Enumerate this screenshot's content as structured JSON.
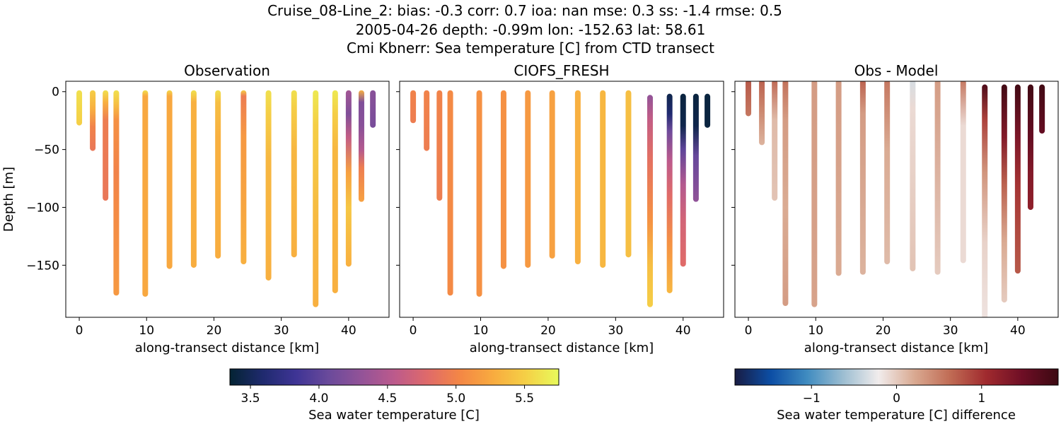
{
  "header": {
    "line1": "Cruise_08-Line_2: bias: -0.3  corr: 0.7  ioa: nan  mse: 0.3  ss: -1.4  rmse: 0.5",
    "line2": "2005-04-26 depth: -0.99m lon: -152.63 lat: 58.61",
    "line3": "Cmi Kbnerr: Sea temperature [C] from CTD transect"
  },
  "colorbars": {
    "temperature": {
      "label": "Sea water temperature [C]",
      "range": [
        3.35,
        5.75
      ],
      "ticks": [
        "3.5",
        "4.0",
        "4.5",
        "5.0",
        "5.5"
      ]
    },
    "difference": {
      "label": "Sea water temperature [C] difference",
      "range": [
        -1.9,
        1.9
      ],
      "ticks": [
        "−1",
        "0",
        "1"
      ]
    }
  },
  "chart_data": [
    {
      "type": "scatter",
      "title": "Observation",
      "xlabel": "along-transect distance [km]",
      "ylabel": "Depth [m]",
      "xlim": [
        -2,
        46
      ],
      "ylim": [
        -195,
        9
      ],
      "xticks": [
        "0",
        "10",
        "20",
        "30",
        "40"
      ],
      "yticks": [
        "0",
        "−50",
        "−100",
        "−150"
      ],
      "colorscale": "thermal",
      "casts": [
        {
          "x": 0.0,
          "bottom": -28,
          "top": 0,
          "stops": [
            {
              "d": 0,
              "v": 5.6
            },
            {
              "d": -28,
              "v": 5.5
            }
          ]
        },
        {
          "x": 2.0,
          "bottom": -50,
          "top": 0,
          "stops": [
            {
              "d": 0,
              "v": 5.5
            },
            {
              "d": -15,
              "v": 5.3
            },
            {
              "d": -30,
              "v": 5.0
            },
            {
              "d": -50,
              "v": 4.9
            }
          ]
        },
        {
          "x": 3.9,
          "bottom": -93,
          "top": 0,
          "stops": [
            {
              "d": 0,
              "v": 5.6
            },
            {
              "d": -10,
              "v": 5.3
            },
            {
              "d": -25,
              "v": 4.95
            },
            {
              "d": -93,
              "v": 4.9
            }
          ]
        },
        {
          "x": 5.5,
          "bottom": -175,
          "top": 0,
          "stops": [
            {
              "d": 0,
              "v": 5.6
            },
            {
              "d": -12,
              "v": 5.4
            },
            {
              "d": -25,
              "v": 5.1
            },
            {
              "d": -70,
              "v": 5.0
            },
            {
              "d": -100,
              "v": 5.05
            },
            {
              "d": -175,
              "v": 5.15
            }
          ]
        },
        {
          "x": 9.8,
          "bottom": -176,
          "top": 0,
          "stops": [
            {
              "d": 0,
              "v": 5.6
            },
            {
              "d": -5,
              "v": 5.25
            },
            {
              "d": -176,
              "v": 5.25
            }
          ]
        },
        {
          "x": 13.4,
          "bottom": -152,
          "top": 0,
          "stops": [
            {
              "d": 0,
              "v": 5.55
            },
            {
              "d": -5,
              "v": 5.25
            },
            {
              "d": -152,
              "v": 5.25
            }
          ]
        },
        {
          "x": 17.0,
          "bottom": -151,
          "top": 0,
          "stops": [
            {
              "d": 0,
              "v": 5.6
            },
            {
              "d": -10,
              "v": 5.3
            },
            {
              "d": -151,
              "v": 5.28
            }
          ]
        },
        {
          "x": 20.6,
          "bottom": -143,
          "top": 0,
          "stops": [
            {
              "d": 0,
              "v": 5.6
            },
            {
              "d": -10,
              "v": 5.4
            },
            {
              "d": -40,
              "v": 5.3
            },
            {
              "d": -143,
              "v": 5.28
            }
          ]
        },
        {
          "x": 24.4,
          "bottom": -148,
          "top": 0,
          "stops": [
            {
              "d": 0,
              "v": 5.5
            },
            {
              "d": -5,
              "v": 4.95
            },
            {
              "d": -40,
              "v": 5.15
            },
            {
              "d": -148,
              "v": 5.3
            }
          ]
        },
        {
          "x": 28.1,
          "bottom": -162,
          "top": 0,
          "stops": [
            {
              "d": 0,
              "v": 5.6
            },
            {
              "d": -20,
              "v": 5.5
            },
            {
              "d": -60,
              "v": 5.35
            },
            {
              "d": -162,
              "v": 5.3
            }
          ]
        },
        {
          "x": 31.9,
          "bottom": -142,
          "top": 0,
          "stops": [
            {
              "d": 0,
              "v": 5.6
            },
            {
              "d": -15,
              "v": 5.5
            },
            {
              "d": -50,
              "v": 5.35
            },
            {
              "d": -142,
              "v": 5.3
            }
          ]
        },
        {
          "x": 35.1,
          "bottom": -185,
          "top": 0,
          "stops": [
            {
              "d": 0,
              "v": 5.65
            },
            {
              "d": -30,
              "v": 5.5
            },
            {
              "d": -120,
              "v": 5.35
            },
            {
              "d": -185,
              "v": 5.3
            }
          ]
        },
        {
          "x": 38.0,
          "bottom": -173,
          "top": 0,
          "stops": [
            {
              "d": 0,
              "v": 5.65
            },
            {
              "d": -20,
              "v": 5.5
            },
            {
              "d": -50,
              "v": 5.35
            },
            {
              "d": -173,
              "v": 5.3
            }
          ]
        },
        {
          "x": 40.0,
          "bottom": -150,
          "top": 0,
          "stops": [
            {
              "d": 0,
              "v": 4.4
            },
            {
              "d": -20,
              "v": 4.2
            },
            {
              "d": -40,
              "v": 4.6
            },
            {
              "d": -70,
              "v": 5.2
            },
            {
              "d": -100,
              "v": 5.45
            },
            {
              "d": -150,
              "v": 5.3
            }
          ]
        },
        {
          "x": 41.9,
          "bottom": -94,
          "top": 0,
          "stops": [
            {
              "d": 0,
              "v": 5.3
            },
            {
              "d": -10,
              "v": 4.2
            },
            {
              "d": -30,
              "v": 4.25
            },
            {
              "d": -50,
              "v": 4.5
            },
            {
              "d": -65,
              "v": 4.95
            },
            {
              "d": -94,
              "v": 5.2
            }
          ]
        },
        {
          "x": 43.6,
          "bottom": -30,
          "top": 0,
          "stops": [
            {
              "d": 0,
              "v": 4.25
            },
            {
              "d": -30,
              "v": 4.15
            }
          ]
        }
      ]
    },
    {
      "type": "scatter",
      "title": "CIOFS_FRESH",
      "xlabel": "along-transect distance [km]",
      "xlim": [
        -2,
        46
      ],
      "ylim": [
        -195,
        9
      ],
      "xticks": [
        "0",
        "10",
        "20",
        "30",
        "40"
      ],
      "colorscale": "thermal",
      "casts": [
        {
          "x": 0.0,
          "bottom": -26,
          "top": 0,
          "stops": [
            {
              "d": 0,
              "v": 5.0
            },
            {
              "d": -26,
              "v": 4.95
            }
          ]
        },
        {
          "x": 2.0,
          "bottom": -50,
          "top": 0,
          "stops": [
            {
              "d": 0,
              "v": 5.0
            },
            {
              "d": -50,
              "v": 4.95
            }
          ]
        },
        {
          "x": 3.9,
          "bottom": -93,
          "top": 0,
          "stops": [
            {
              "d": 0,
              "v": 5.0
            },
            {
              "d": -93,
              "v": 4.95
            }
          ]
        },
        {
          "x": 5.5,
          "bottom": -175,
          "top": 0,
          "stops": [
            {
              "d": 0,
              "v": 5.05
            },
            {
              "d": -175,
              "v": 5.05
            }
          ]
        },
        {
          "x": 9.8,
          "bottom": -176,
          "top": 0,
          "stops": [
            {
              "d": 0,
              "v": 5.1
            },
            {
              "d": -176,
              "v": 5.1
            }
          ]
        },
        {
          "x": 13.4,
          "bottom": -152,
          "top": 0,
          "stops": [
            {
              "d": 0,
              "v": 5.1
            },
            {
              "d": -152,
              "v": 5.1
            }
          ]
        },
        {
          "x": 17.0,
          "bottom": -151,
          "top": 0,
          "stops": [
            {
              "d": 0,
              "v": 5.15
            },
            {
              "d": -151,
              "v": 5.15
            }
          ]
        },
        {
          "x": 20.6,
          "bottom": -143,
          "top": 0,
          "stops": [
            {
              "d": 0,
              "v": 5.2
            },
            {
              "d": -143,
              "v": 5.2
            }
          ]
        },
        {
          "x": 24.4,
          "bottom": -148,
          "top": 0,
          "stops": [
            {
              "d": 0,
              "v": 5.3
            },
            {
              "d": -148,
              "v": 5.3
            }
          ]
        },
        {
          "x": 28.1,
          "bottom": -151,
          "top": 0,
          "stops": [
            {
              "d": 0,
              "v": 5.35
            },
            {
              "d": -151,
              "v": 5.35
            }
          ]
        },
        {
          "x": 31.9,
          "bottom": -142,
          "top": 0,
          "stops": [
            {
              "d": 0,
              "v": 5.4
            },
            {
              "d": -142,
              "v": 5.4
            }
          ]
        },
        {
          "x": 35.1,
          "bottom": -185,
          "top": -4,
          "stops": [
            {
              "d": -4,
              "v": 4.3
            },
            {
              "d": -25,
              "v": 4.6
            },
            {
              "d": -60,
              "v": 4.85
            },
            {
              "d": -110,
              "v": 5.1
            },
            {
              "d": -150,
              "v": 5.4
            },
            {
              "d": -185,
              "v": 5.5
            }
          ]
        },
        {
          "x": 38.0,
          "bottom": -173,
          "top": -3,
          "stops": [
            {
              "d": -3,
              "v": 3.45
            },
            {
              "d": -20,
              "v": 3.6
            },
            {
              "d": -35,
              "v": 4.1
            },
            {
              "d": -60,
              "v": 4.55
            },
            {
              "d": -90,
              "v": 4.8
            },
            {
              "d": -130,
              "v": 5.1
            },
            {
              "d": -173,
              "v": 5.35
            }
          ]
        },
        {
          "x": 40.0,
          "bottom": -150,
          "top": -3,
          "stops": [
            {
              "d": -3,
              "v": 3.4
            },
            {
              "d": -30,
              "v": 3.45
            },
            {
              "d": -50,
              "v": 4.0
            },
            {
              "d": -80,
              "v": 4.5
            },
            {
              "d": -110,
              "v": 4.7
            },
            {
              "d": -150,
              "v": 4.8
            }
          ]
        },
        {
          "x": 41.9,
          "bottom": -94,
          "top": -3,
          "stops": [
            {
              "d": -3,
              "v": 3.4
            },
            {
              "d": -30,
              "v": 3.45
            },
            {
              "d": -55,
              "v": 4.05
            },
            {
              "d": -94,
              "v": 4.3
            }
          ]
        },
        {
          "x": 43.6,
          "bottom": -30,
          "top": -3,
          "stops": [
            {
              "d": -3,
              "v": 3.4
            },
            {
              "d": -30,
              "v": 3.4
            }
          ]
        }
      ]
    },
    {
      "type": "scatter",
      "title": "Obs - Model",
      "xlabel": "along-transect distance [km]",
      "xlim": [
        -2,
        46
      ],
      "ylim": [
        -195,
        9
      ],
      "xticks": [
        "0",
        "10",
        "20",
        "30",
        "40"
      ],
      "colorscale": "balance",
      "casts": [
        {
          "x": 0.0,
          "bottom": -20,
          "top": 9,
          "stops": [
            {
              "d": 9,
              "v": 0.75
            },
            {
              "d": -20,
              "v": 0.55
            }
          ]
        },
        {
          "x": 2.0,
          "bottom": -45,
          "top": 9,
          "stops": [
            {
              "d": 9,
              "v": 0.7
            },
            {
              "d": -15,
              "v": 0.45
            },
            {
              "d": -45,
              "v": 0.15
            }
          ]
        },
        {
          "x": 3.9,
          "bottom": -93,
          "top": 9,
          "stops": [
            {
              "d": 9,
              "v": 0.65
            },
            {
              "d": -25,
              "v": 0.1
            },
            {
              "d": -93,
              "v": 0.05
            }
          ]
        },
        {
          "x": 5.5,
          "bottom": -184,
          "top": 9,
          "stops": [
            {
              "d": 9,
              "v": 0.6
            },
            {
              "d": -25,
              "v": 0.3
            },
            {
              "d": -100,
              "v": 0.2
            },
            {
              "d": -184,
              "v": 0.3
            }
          ]
        },
        {
          "x": 9.8,
          "bottom": -185,
          "top": 9,
          "stops": [
            {
              "d": 9,
              "v": 0.3
            },
            {
              "d": -185,
              "v": 0.25
            }
          ]
        },
        {
          "x": 13.4,
          "bottom": -158,
          "top": 9,
          "stops": [
            {
              "d": 9,
              "v": 0.3
            },
            {
              "d": -158,
              "v": 0.2
            }
          ]
        },
        {
          "x": 17.0,
          "bottom": -157,
          "top": 9,
          "stops": [
            {
              "d": 9,
              "v": 0.7
            },
            {
              "d": -20,
              "v": 0.3
            },
            {
              "d": -157,
              "v": 0.15
            }
          ]
        },
        {
          "x": 20.6,
          "bottom": -148,
          "top": 9,
          "stops": [
            {
              "d": 9,
              "v": 0.55
            },
            {
              "d": -50,
              "v": 0.2
            },
            {
              "d": -148,
              "v": 0.1
            }
          ]
        },
        {
          "x": 24.4,
          "bottom": -154,
          "top": 9,
          "stops": [
            {
              "d": 9,
              "v": -0.35
            },
            {
              "d": -15,
              "v": -0.1
            },
            {
              "d": -154,
              "v": 0.05
            }
          ]
        },
        {
          "x": 28.1,
          "bottom": -157,
          "top": 9,
          "stops": [
            {
              "d": 9,
              "v": 0.3
            },
            {
              "d": -157,
              "v": 0.0
            }
          ]
        },
        {
          "x": 31.9,
          "bottom": -147,
          "top": 9,
          "stops": [
            {
              "d": 9,
              "v": 0.55
            },
            {
              "d": -30,
              "v": -0.1
            },
            {
              "d": -147,
              "v": -0.1
            }
          ]
        },
        {
          "x": 35.1,
          "bottom": -195,
          "top": 5,
          "stops": [
            {
              "d": 5,
              "v": 1.75
            },
            {
              "d": -25,
              "v": 0.9
            },
            {
              "d": -70,
              "v": 0.35
            },
            {
              "d": -130,
              "v": -0.05
            },
            {
              "d": -195,
              "v": -0.15
            }
          ]
        },
        {
          "x": 38.0,
          "bottom": -181,
          "top": 5,
          "stops": [
            {
              "d": 5,
              "v": 1.85
            },
            {
              "d": -40,
              "v": 1.3
            },
            {
              "d": -80,
              "v": 0.7
            },
            {
              "d": -130,
              "v": 0.2
            },
            {
              "d": -181,
              "v": 0.0
            }
          ]
        },
        {
          "x": 40.0,
          "bottom": -156,
          "top": 5,
          "stops": [
            {
              "d": 5,
              "v": 1.85
            },
            {
              "d": -40,
              "v": 1.35
            },
            {
              "d": -80,
              "v": 1.0
            },
            {
              "d": -120,
              "v": 0.85
            },
            {
              "d": -156,
              "v": 0.75
            }
          ]
        },
        {
          "x": 41.9,
          "bottom": -101,
          "top": 5,
          "stops": [
            {
              "d": 5,
              "v": 1.85
            },
            {
              "d": -40,
              "v": 1.55
            },
            {
              "d": -70,
              "v": 1.3
            },
            {
              "d": -101,
              "v": 1.2
            }
          ]
        },
        {
          "x": 43.6,
          "bottom": -35,
          "top": 5,
          "stops": [
            {
              "d": 5,
              "v": 1.85
            },
            {
              "d": -35,
              "v": 1.55
            }
          ]
        }
      ]
    }
  ]
}
